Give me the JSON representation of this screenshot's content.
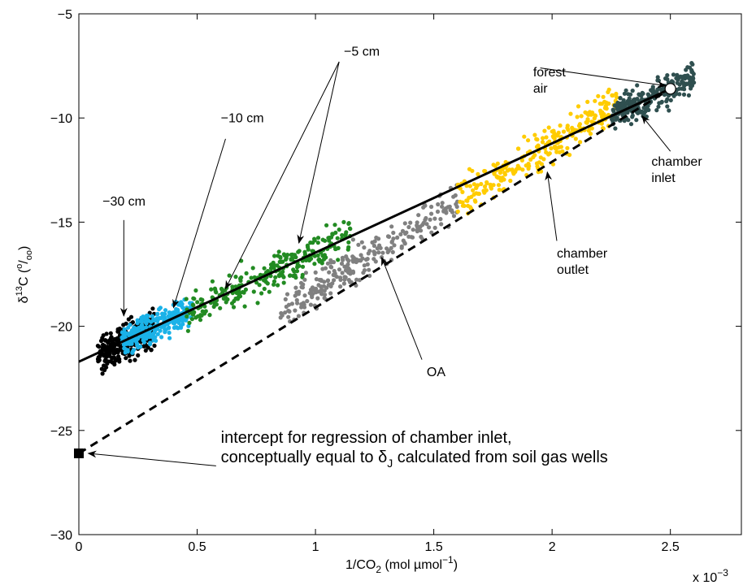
{
  "chart_data": {
    "type": "scatter",
    "xlabel": "1/CO",
    "xlabel_sub": "2",
    "xlabel_units": " (mol µmol",
    "xlabel_units_sup": "−1",
    "xlabel_close": ")",
    "ylabel": "δ",
    "ylabel_sup1": "13",
    "ylabel_mid": "C (",
    "ylabel_sup2": "o",
    "ylabel_mid2": "/",
    "ylabel_sub": "oo",
    "ylabel_close": ")",
    "x_multiplier": "x 10",
    "x_multiplier_exp": "−3",
    "xlim": [
      0,
      2.8
    ],
    "ylim": [
      -30,
      -5
    ],
    "x_ticks": [
      0,
      0.5,
      1,
      1.5,
      2,
      2.5
    ],
    "x_tick_labels": [
      "0",
      "0.5",
      "1",
      "1.5",
      "2",
      "2.5"
    ],
    "y_ticks": [
      -30,
      -25,
      -20,
      -15,
      -10,
      -5
    ],
    "y_tick_labels": [
      "−30",
      "−25",
      "−20",
      "−15",
      "−10",
      "−5"
    ],
    "grid": false,
    "series": [
      {
        "color": "#000000",
        "x_range": [
          0.08,
          0.32
        ],
        "y_center_line": "solid",
        "spread": 0.45
      },
      {
        "color": "#1ab2e8",
        "x_range": [
          0.18,
          0.48
        ],
        "y_center_line": "solid",
        "spread": 0.35
      },
      {
        "color": "#228b22",
        "x_range": [
          0.45,
          1.15
        ],
        "y_center_line": "solid",
        "spread": 0.4
      },
      {
        "color": "#808080",
        "x_range": [
          0.85,
          1.6
        ],
        "y_center_line": "dashed",
        "spread": 0.45
      },
      {
        "color": "#ffcc00",
        "x_range": [
          1.6,
          2.28
        ],
        "y_center_line": "dashed",
        "spread": 0.45
      },
      {
        "color": "#2f4f4f",
        "x_range": [
          2.25,
          2.6
        ],
        "y_center_line": "solid",
        "spread": 0.35
      }
    ],
    "lines": [
      {
        "style": "solid",
        "x": [
          0,
          2.5
        ],
        "y": [
          -21.7,
          -8.6
        ]
      },
      {
        "style": "dashed",
        "x": [
          0,
          2.5
        ],
        "y": [
          -26.1,
          -8.6
        ]
      }
    ],
    "markers": [
      {
        "shape": "circle-open",
        "x": 2.5,
        "y": -8.6
      },
      {
        "shape": "square-filled",
        "x": 0,
        "y": -26.1
      }
    ],
    "annotations": [
      {
        "id": "forest-air",
        "lines": [
          "forest",
          "air"
        ],
        "text_x": 1.92,
        "text_y": -8.0,
        "arrows": [
          [
            2.48,
            -8.45
          ]
        ],
        "start": [
          1.95,
          -7.6
        ]
      },
      {
        "id": "chamber-inlet",
        "lines": [
          "chamber",
          "inlet"
        ],
        "text_x": 2.42,
        "text_y": -12.3,
        "arrows": [
          [
            2.38,
            -9.9
          ]
        ],
        "start": [
          2.5,
          -11.6
        ]
      },
      {
        "id": "chamber-outlet",
        "lines": [
          "chamber",
          "outlet"
        ],
        "text_x": 2.02,
        "text_y": -16.7,
        "arrows": [
          [
            1.98,
            -12.6
          ]
        ],
        "start": [
          2.02,
          -15.9
        ]
      },
      {
        "id": "oa",
        "lines": [
          "OA"
        ],
        "text_x": 1.47,
        "text_y": -22.4,
        "arrows": [
          [
            1.28,
            -16.7
          ]
        ],
        "start": [
          1.45,
          -21.6
        ]
      },
      {
        "id": "minus-5cm",
        "lines": [
          "−5 cm"
        ],
        "text_x": 1.12,
        "text_y": -7.0,
        "arrows": [
          [
            0.62,
            -18.2
          ],
          [
            0.93,
            -16.0
          ]
        ],
        "start": [
          1.1,
          -7.3
        ]
      },
      {
        "id": "minus-10cm",
        "lines": [
          "−10 cm"
        ],
        "text_x": 0.6,
        "text_y": -10.2,
        "arrows": [
          [
            0.4,
            -19.1
          ]
        ],
        "start": [
          0.62,
          -11.0
        ]
      },
      {
        "id": "minus-30cm",
        "lines": [
          "−30 cm"
        ],
        "text_x": 0.1,
        "text_y": -14.2,
        "arrows": [
          [
            0.19,
            -19.5
          ]
        ],
        "start": [
          0.19,
          -14.9
        ]
      },
      {
        "id": "intercept",
        "lines": [
          "intercept for regression of chamber inlet,",
          "conceptually equal to δ"
        ],
        "line2_sub": "J",
        "line2_rest": " calculated from soil gas wells",
        "text_x": 0.6,
        "text_y": -25.6,
        "arrows": [
          [
            0.04,
            -26.1
          ]
        ],
        "start": [
          0.58,
          -26.7
        ]
      }
    ]
  }
}
